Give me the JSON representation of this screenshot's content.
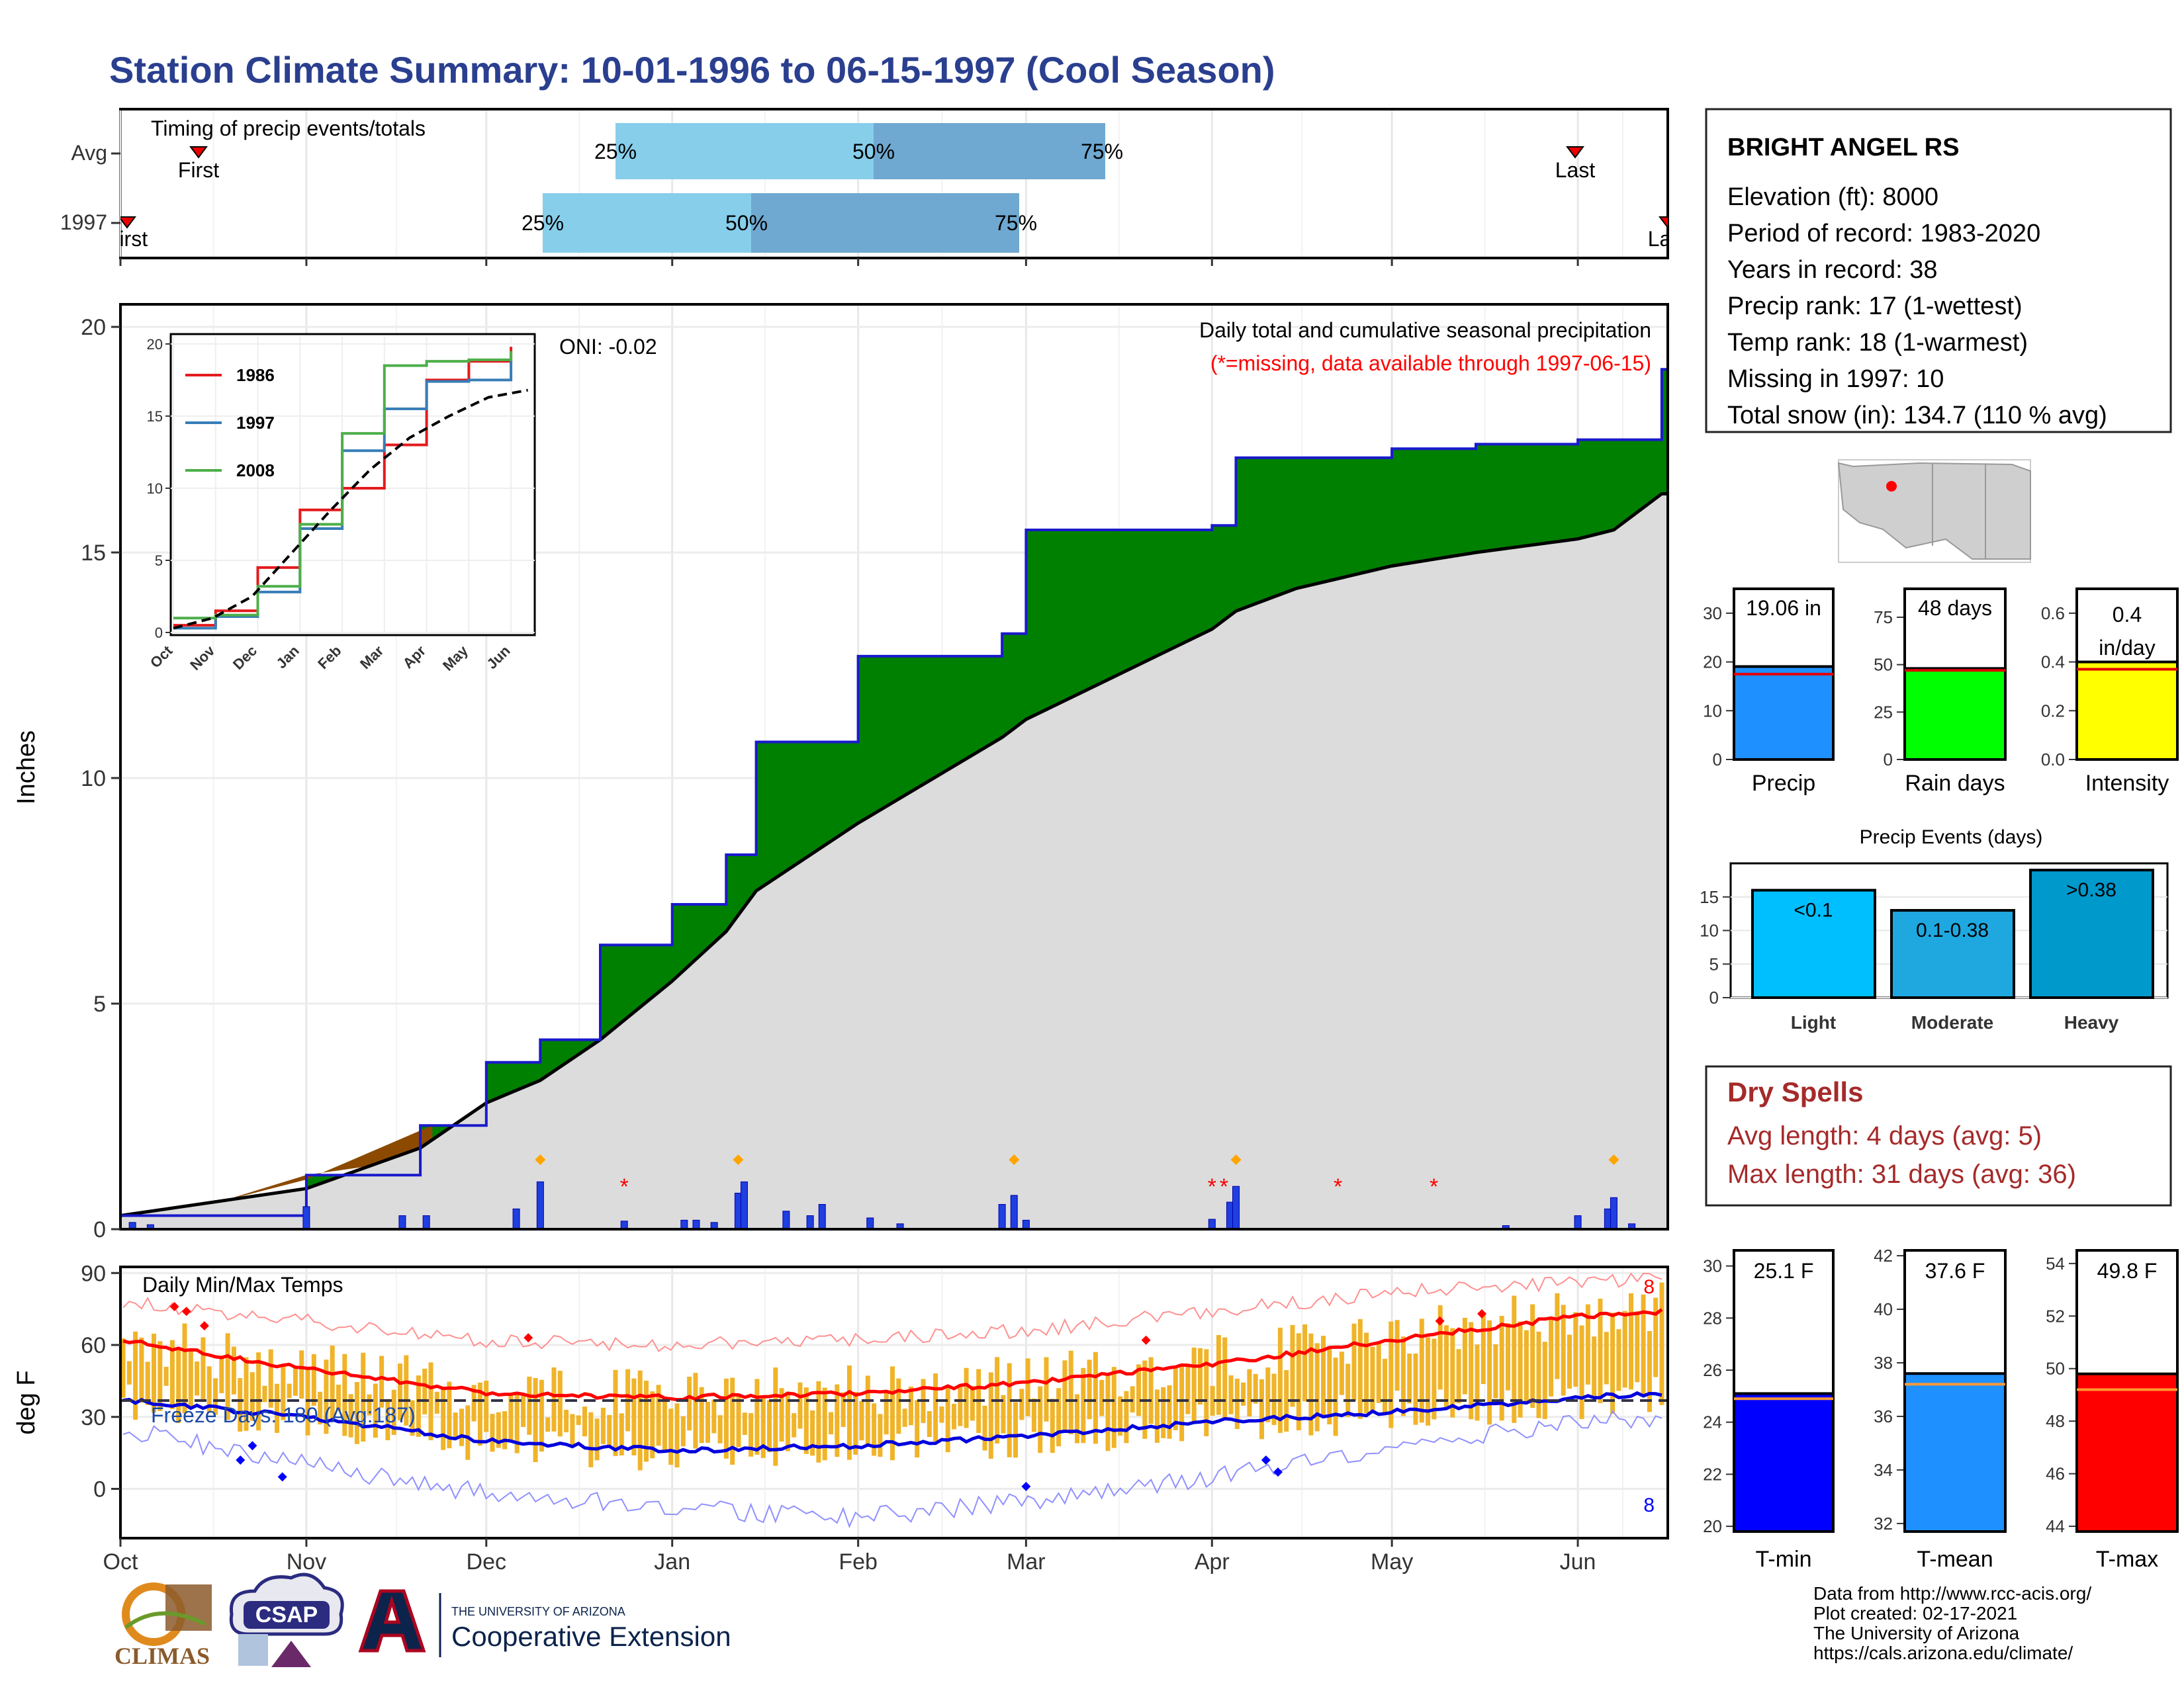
{
  "title": "Station Climate Summary: 10-01-1996 to 06-15-1997 (Cool Season)",
  "colors": {
    "title": "#2a3f8f",
    "precip_blue": "#1f5fe0",
    "green": "#008000",
    "brown": "#8b4a00",
    "grey_fill": "#dcdcdc",
    "light_blue": "#87ceeb",
    "mid_blue": "#6fa8d0",
    "tmax_red": "#ff0000",
    "tmin_blue": "#0000ff",
    "bar_gold": "#f0b429",
    "dry_red": "#a52a2a"
  },
  "timing": {
    "panel_title": "Timing of precip events/totals",
    "rows": [
      "Avg",
      "1997"
    ],
    "avg": {
      "first": "First",
      "last": "Last",
      "p25": "25%",
      "p50": "50%",
      "p75": "75%"
    },
    "y1997": {
      "first": "First",
      "last": "Last",
      "p25": "25%",
      "p50": "50%",
      "p75": "75%"
    }
  },
  "precip_panel": {
    "ylabel": "Inches",
    "oni": "ONI: -0.02",
    "header": "Daily total and cumulative seasonal precipitation",
    "note": "(*=missing, data available through 1997-06-15)",
    "yticks": [
      "0",
      "5",
      "10",
      "15",
      "20"
    ]
  },
  "inset": {
    "legend": [
      "1986",
      "1997",
      "2008"
    ],
    "yticks": [
      "0",
      "5",
      "10",
      "15",
      "20"
    ],
    "xticks": [
      "Oct",
      "Nov",
      "Dec",
      "Jan",
      "Feb",
      "Mar",
      "Apr",
      "May",
      "Jun"
    ]
  },
  "temp_panel": {
    "ylabel": "deg F",
    "title": "Daily Min/Max Temps",
    "freeze": "Freeze Days: 180 (Avg:187)",
    "yticks": [
      "0",
      "30",
      "60",
      "90"
    ],
    "record_hi_count": "8",
    "record_lo_count": "8"
  },
  "x_months": [
    "Oct",
    "Nov",
    "Dec",
    "Jan",
    "Feb",
    "Mar",
    "Apr",
    "May",
    "Jun"
  ],
  "station": {
    "name": "BRIGHT ANGEL RS",
    "lines": [
      "Elevation (ft): 8000",
      "Period of record: 1983-2020",
      "Years in record: 38",
      "Precip rank: 17 (1-wettest)",
      "Temp rank: 18 (1-warmest)",
      "Missing in 1997: 10",
      "Total snow (in): 134.7 (110 % avg)"
    ]
  },
  "summary_bars": [
    {
      "name": "Precip",
      "label": "19.06 in",
      "value": 19.06,
      "avg": 17.5,
      "ymax": 35,
      "ticks": [
        "0",
        "10",
        "20",
        "30"
      ],
      "color": "#1e90ff"
    },
    {
      "name": "Rain days",
      "label": "48 days",
      "value": 48,
      "avg": 47,
      "ymax": 90,
      "ticks": [
        "0",
        "25",
        "50",
        "75"
      ],
      "color": "#00ff00"
    },
    {
      "name": "Intensity",
      "label": "0.4 in/day",
      "label1": "0.4",
      "label2": "in/day",
      "value": 0.4,
      "avg": 0.37,
      "ymax": 0.7,
      "ticks": [
        "0.0",
        "0.2",
        "0.4",
        "0.6"
      ],
      "color": "#ffff00"
    }
  ],
  "events": {
    "title": "Precip Events (days)",
    "categories": [
      "Light",
      "Moderate",
      "Heavy"
    ],
    "labels": [
      "<0.1",
      "0.1-0.38",
      ">0.38"
    ],
    "values": [
      16,
      13,
      19
    ],
    "ticks": [
      "0",
      "5",
      "10",
      "15"
    ]
  },
  "dry_spells": {
    "title": "Dry Spells",
    "avg": "Avg length: 4 days (avg: 5)",
    "max": "Max length: 31 days (avg: 36)"
  },
  "temp_bars": [
    {
      "name": "T-min",
      "label": "25.1 F",
      "value": 25.1,
      "avg": 24.9,
      "ymin": 19.8,
      "ymax": 30.6,
      "ticks": [
        "20",
        "22",
        "24",
        "26",
        "28",
        "30"
      ],
      "color": "#0000ff"
    },
    {
      "name": "T-mean",
      "label": "37.6 F",
      "value": 37.6,
      "avg": 37.2,
      "ymin": 31.7,
      "ymax": 42.2,
      "ticks": [
        "32",
        "34",
        "36",
        "38",
        "40",
        "42"
      ],
      "color": "#1e90ff"
    },
    {
      "name": "T-max",
      "label": "49.8 F",
      "value": 49.8,
      "avg": 49.2,
      "ymin": 43.8,
      "ymax": 54.5,
      "ticks": [
        "44",
        "46",
        "48",
        "50",
        "52",
        "54"
      ],
      "color": "#ff0000"
    }
  ],
  "footer": {
    "lines": [
      "Data from http://www.rcc-acis.org/",
      "Plot created: 02-17-2021",
      "The University of Arizona",
      "https://cals.arizona.edu/climate/"
    ],
    "logo_climas": "CLIMAS",
    "logo_csap": "CSAP",
    "logo_ua_small": "THE UNIVERSITY OF ARIZONA",
    "logo_ua_big": "Cooperative Extension"
  },
  "chart_data": [
    {
      "type": "area",
      "title": "Daily total and cumulative seasonal precipitation",
      "ylabel": "Inches",
      "ylim": [
        0,
        20.5
      ],
      "x": [
        "1996-10-01",
        "1996-11-01",
        "1996-11-20",
        "1996-12-01",
        "1996-12-10",
        "1996-12-20",
        "1997-01-01",
        "1997-01-10",
        "1997-01-15",
        "1997-02-01",
        "1997-02-25",
        "1997-03-01",
        "1997-04-01",
        "1997-04-05",
        "1997-04-15",
        "1997-05-01",
        "1997-05-15",
        "1997-06-01",
        "1997-06-07",
        "1997-06-15"
      ],
      "series": [
        {
          "name": "1997",
          "values": [
            0.3,
            1.2,
            2.3,
            3.7,
            4.2,
            6.3,
            7.2,
            8.3,
            10.8,
            12.7,
            13.2,
            15.5,
            15.6,
            17.1,
            17.1,
            17.3,
            17.4,
            17.5,
            17.5,
            19.06
          ]
        },
        {
          "name": "average",
          "values": [
            0.3,
            0.9,
            1.8,
            2.8,
            3.3,
            4.2,
            5.5,
            6.6,
            7.5,
            9.0,
            10.9,
            11.3,
            13.3,
            13.7,
            14.2,
            14.7,
            15.0,
            15.3,
            15.5,
            16.3
          ]
        }
      ]
    },
    {
      "type": "line",
      "title": "",
      "ylim": [
        0,
        20.5
      ],
      "x": [
        "Oct",
        "Nov",
        "Dec",
        "Jan",
        "Feb",
        "Mar",
        "Apr",
        "May",
        "Jun"
      ],
      "series": [
        {
          "name": "1986",
          "values": [
            0.5,
            1.5,
            4.5,
            8.5,
            10.0,
            13.0,
            17.5,
            18.8,
            19.8
          ]
        },
        {
          "name": "1997",
          "values": [
            0.3,
            1.1,
            2.8,
            7.2,
            12.6,
            15.5,
            17.4,
            17.5,
            19.0
          ]
        },
        {
          "name": "2008",
          "values": [
            1.0,
            1.2,
            3.2,
            7.5,
            13.8,
            18.5,
            18.8,
            18.9,
            19.5
          ]
        }
      ]
    },
    {
      "type": "bar",
      "title": "Daily Min/Max Temps",
      "ylabel": "deg F",
      "ylim": [
        -20,
        92
      ],
      "x": [
        "1996-10-01",
        "1996-11-01",
        "1996-12-01",
        "1997-01-01",
        "1997-02-01",
        "1997-03-01",
        "1997-04-01",
        "1997-05-01",
        "1997-06-01",
        "1997-06-15"
      ],
      "series": [
        {
          "name": "avg max",
          "values": [
            62,
            50,
            40,
            38,
            40,
            44,
            52,
            62,
            72,
            74
          ]
        },
        {
          "name": "avg min",
          "values": [
            37,
            30,
            20,
            16,
            18,
            22,
            28,
            32,
            38,
            40
          ]
        },
        {
          "name": "record high",
          "values": [
            78,
            70,
            62,
            60,
            62,
            66,
            74,
            82,
            86,
            88
          ]
        },
        {
          "name": "record low",
          "values": [
            25,
            10,
            -2,
            -8,
            -12,
            -5,
            5,
            18,
            28,
            30
          ]
        }
      ]
    }
  ]
}
